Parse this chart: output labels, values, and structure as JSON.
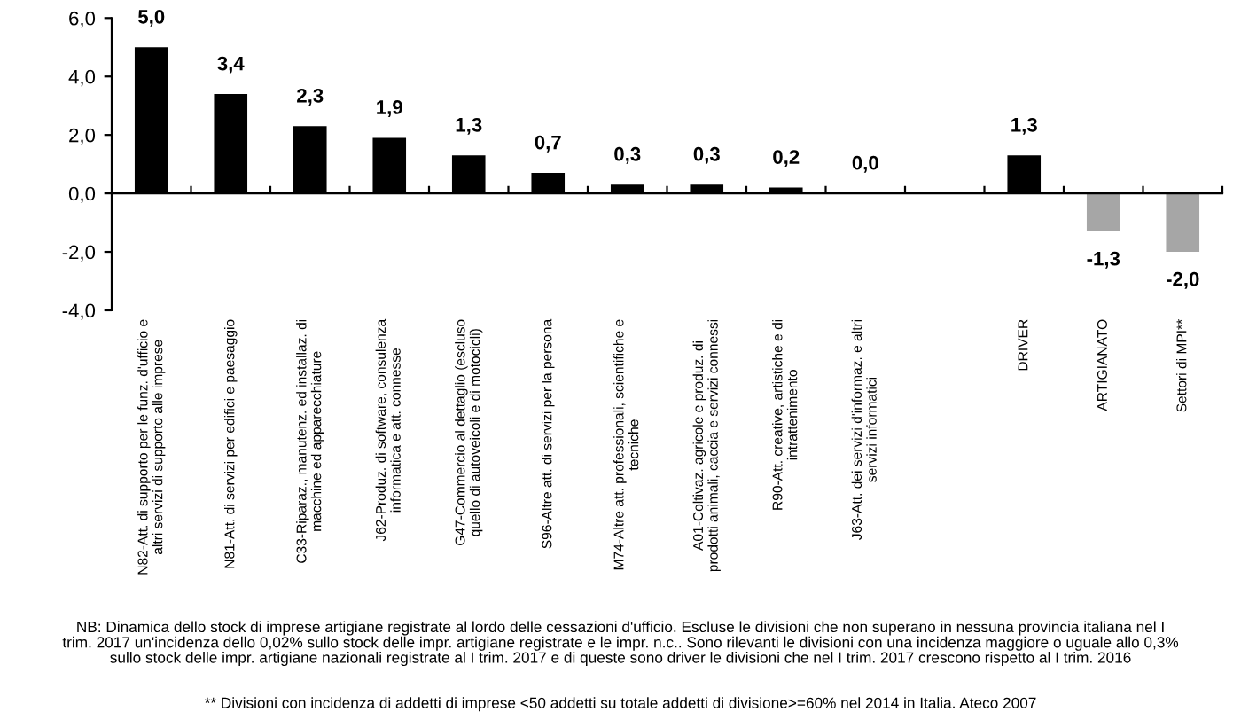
{
  "chart_data": {
    "type": "bar",
    "categories": [
      "N82-Att. di supporto per le funz. d'ufficio e\naltri servizi di supporto alle imprese",
      "N81-Att. di servizi per edifici e paesaggio",
      "C33-Riparaz., manutenz. ed installaz. di\nmacchine ed apparecchiature",
      "J62-Produz. di software, consulenza\ninformatica e att. connesse",
      "G47-Commercio al dettaglio (escluso\nquello di autoveicoli e di motocicli)",
      "S96-Altre att. di servizi per la persona",
      "M74-Altre att. professionali, scientifiche e\ntecniche",
      "A01-Coltivaz. agricole e produz. di\nprodotti animali, caccia e servizi connessi",
      "R90-Att. creative, artistiche e di\nintrattenimento",
      "J63-Att. dei servizi d'informaz. e altri\nservizi informatici",
      null,
      "DRIVER",
      "ARTIGIANATO",
      "Settori di MPI**"
    ],
    "values": [
      5.0,
      3.4,
      2.3,
      1.9,
      1.3,
      0.7,
      0.3,
      0.3,
      0.2,
      0.0,
      null,
      1.3,
      -1.3,
      -2.0
    ],
    "colors": [
      "#000000",
      "#000000",
      "#000000",
      "#000000",
      "#000000",
      "#000000",
      "#000000",
      "#000000",
      "#000000",
      "#000000",
      "#000000",
      "#000000",
      "#a6a6a6",
      "#a6a6a6"
    ],
    "value_labels": [
      "5,0",
      "3,4",
      "2,3",
      "1,9",
      "1,3",
      "0,7",
      "0,3",
      "0,3",
      "0,2",
      "0,0",
      null,
      "1,3",
      "-1,3",
      "-2,0"
    ],
    "ylim": [
      -4,
      6
    ],
    "yticks": [
      {
        "value": -4,
        "label": "-4,0"
      },
      {
        "value": -2,
        "label": "-2,0"
      },
      {
        "value": 0,
        "label": "0,0"
      },
      {
        "value": 2,
        "label": "2,0"
      },
      {
        "value": 4,
        "label": "4,0"
      },
      {
        "value": 6,
        "label": "6,0"
      }
    ],
    "annotations": [
      "NB: Dinamica dello stock di imprese artigiane registrate al lordo delle cessazioni d'ufficio. Escluse le divisioni che non superano in nessuna provincia italiana nel I\ntrim. 2017 un'incidenza dello 0,02% sullo stock delle impr. artigiane registrate e le impr. n.c.. Sono rilevanti le divisioni con una incidenza maggiore o uguale allo 0,3%\nsullo stock delle impr. artigiane nazionali registrate al I trim. 2017 e di queste sono driver le divisioni che nel I trim. 2017 crescono rispetto al I trim. 2016",
      "** Divisioni con incidenza di addetti di imprese <50 addetti su totale addetti di divisione>=60% nel 2014 in Italia. Ateco 2007"
    ]
  }
}
